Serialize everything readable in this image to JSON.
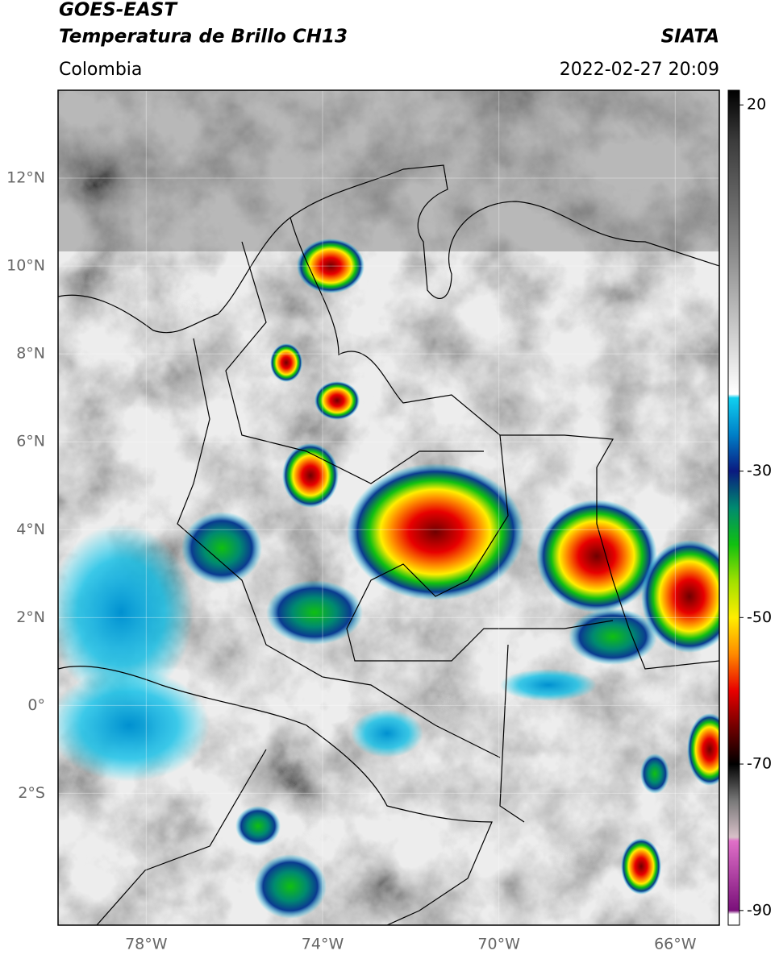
{
  "header": {
    "title": "GOES-EAST",
    "subtitle": "Temperatura de Brillo CH13",
    "agency": "SIATA",
    "region": "Colombia",
    "datetime": "2022-02-27 20:09"
  },
  "map": {
    "lonlim": [
      -80,
      -65
    ],
    "latlim": [
      -5,
      14
    ],
    "lat_ticks": [
      {
        "value": 12,
        "label": "12°N"
      },
      {
        "value": 10,
        "label": "10°N"
      },
      {
        "value": 8,
        "label": "8°N"
      },
      {
        "value": 6,
        "label": "6°N"
      },
      {
        "value": 4,
        "label": "4°N"
      },
      {
        "value": 2,
        "label": "2°N"
      },
      {
        "value": 0,
        "label": "0°"
      },
      {
        "value": -2,
        "label": "2°S"
      }
    ],
    "lon_ticks": [
      {
        "value": -78,
        "label": "78°W"
      },
      {
        "value": -74,
        "label": "74°W"
      },
      {
        "value": -70,
        "label": "70°W"
      },
      {
        "value": -66,
        "label": "66°W"
      }
    ]
  },
  "colorbar": {
    "lim": [
      -92,
      22
    ],
    "ticks": [
      20,
      -30,
      -50,
      -70,
      -90
    ],
    "stops": [
      {
        "value": 22,
        "color": "#000000"
      },
      {
        "value": 15,
        "color": "#3c3c3c"
      },
      {
        "value": 0,
        "color": "#8a8a8a"
      },
      {
        "value": -19.5,
        "color": "#ffffff"
      },
      {
        "value": -20,
        "color": "#10d0f0"
      },
      {
        "value": -25,
        "color": "#0080c8"
      },
      {
        "value": -30,
        "color": "#0a1a80"
      },
      {
        "value": -35,
        "color": "#008a70"
      },
      {
        "value": -40,
        "color": "#10c010"
      },
      {
        "value": -45,
        "color": "#a0e000"
      },
      {
        "value": -50,
        "color": "#ffee00"
      },
      {
        "value": -55,
        "color": "#ff8a00"
      },
      {
        "value": -60,
        "color": "#e80000"
      },
      {
        "value": -65,
        "color": "#700000"
      },
      {
        "value": -70,
        "color": "#000000"
      },
      {
        "value": -75,
        "color": "#787878"
      },
      {
        "value": -80,
        "color": "#d8c0c8"
      },
      {
        "value": -80.5,
        "color": "#e070c8"
      },
      {
        "value": -90,
        "color": "#7a107a"
      },
      {
        "value": -90.5,
        "color": "#ffffff"
      },
      {
        "value": -92,
        "color": "#ffffff"
      }
    ]
  }
}
